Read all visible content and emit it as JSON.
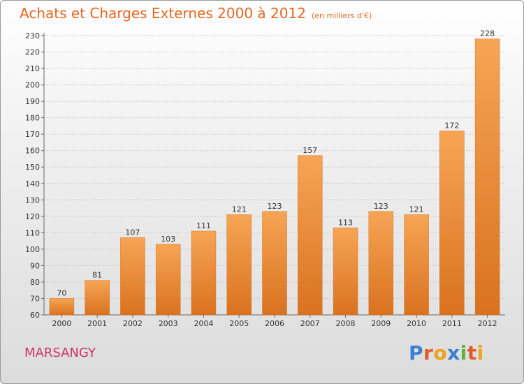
{
  "header": {
    "title": "Achats et Charges Externes 2000 à 2012",
    "unit": "(en milliers d'€)"
  },
  "footer": {
    "commune": "MARSANGY",
    "logo_text": "Proxiti"
  },
  "colors": {
    "title": "#e8661f",
    "bar_top": "#f6a555",
    "bar_bottom": "#d9721f",
    "commune": "#cc3366",
    "grid": "#c8c8c8"
  },
  "chart_data": {
    "type": "bar",
    "categories": [
      "2000",
      "2001",
      "2002",
      "2003",
      "2004",
      "2005",
      "2006",
      "2007",
      "2008",
      "2009",
      "2010",
      "2011",
      "2012"
    ],
    "values": [
      70,
      81,
      107,
      103,
      111,
      121,
      123,
      157,
      113,
      123,
      121,
      172,
      228
    ],
    "title": "Achats et Charges Externes 2000 à 2012",
    "xlabel": "",
    "ylabel": "",
    "ylim": [
      60,
      230
    ],
    "ytick_step": 10,
    "grid": true,
    "legend": "none"
  }
}
